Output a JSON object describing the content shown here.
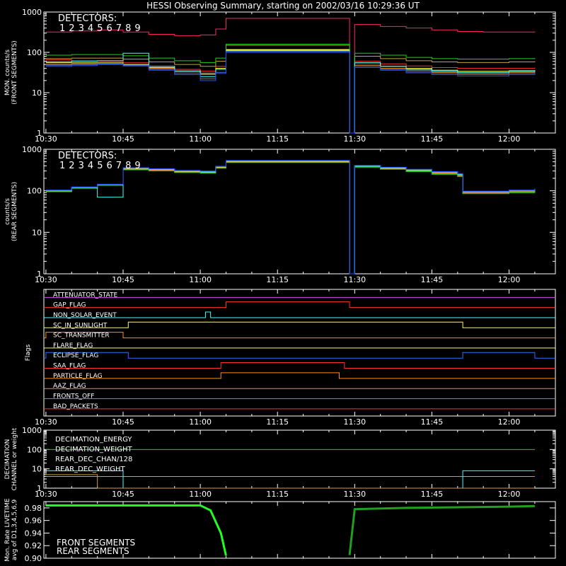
{
  "title": "HESSI Observing Summary, starting on 2002/03/16 10:29:36 UT",
  "time_ticks": [
    "10:30",
    "10:45",
    "11:00",
    "11:15",
    "11:30",
    "11:45",
    "12:00"
  ],
  "chart_data": [
    {
      "type": "line",
      "panel": "front",
      "ylabel": [
        "MON. counts/s",
        "(FRONT SEGMENTS)"
      ],
      "yscale": "log",
      "ylim": [
        1,
        1000
      ],
      "yticks": [
        "1",
        "10",
        "100",
        "1000"
      ],
      "legend_title": "DETECTORS:",
      "legend_digits": [
        "1",
        "2",
        "3",
        "4",
        "5",
        "6",
        "7",
        "8",
        "9"
      ],
      "colors": [
        "#ff2070",
        "#ff3030",
        "#ff8c1a",
        "#ffff40",
        "#c8a040",
        "#20d020",
        "#40ffff",
        "#3070ff",
        "#2050ff"
      ],
      "x": [
        "10:30",
        "10:35",
        "10:40",
        "10:45",
        "10:50",
        "10:55",
        "11:00",
        "11:03",
        "11:05",
        "11:29",
        "11:30",
        "11:35",
        "11:40",
        "11:45",
        "11:50",
        "11:55",
        "12:00",
        "12:05"
      ],
      "series": [
        {
          "values": [
            320,
            340,
            360,
            320,
            280,
            260,
            270,
            380,
            700,
            1,
            490,
            440,
            400,
            360,
            330,
            320,
            320,
            330
          ]
        },
        {
          "values": [
            65,
            62,
            60,
            55,
            45,
            38,
            34,
            45,
            120,
            1,
            60,
            52,
            46,
            42,
            40,
            40,
            40,
            42
          ]
        },
        {
          "values": [
            50,
            52,
            52,
            48,
            40,
            33,
            28,
            38,
            110,
            1,
            48,
            40,
            36,
            32,
            30,
            30,
            32,
            34
          ]
        },
        {
          "values": [
            55,
            55,
            55,
            50,
            42,
            35,
            30,
            40,
            115,
            1,
            55,
            45,
            40,
            36,
            34,
            34,
            35,
            36
          ]
        },
        {
          "values": [
            70,
            72,
            72,
            68,
            58,
            50,
            45,
            60,
            150,
            1,
            80,
            70,
            62,
            58,
            56,
            56,
            58,
            60
          ]
        },
        {
          "values": [
            85,
            88,
            88,
            82,
            72,
            62,
            56,
            72,
            160,
            1,
            95,
            85,
            75,
            70,
            68,
            68,
            70,
            72
          ]
        },
        {
          "values": [
            58,
            60,
            62,
            95,
            45,
            35,
            25,
            38,
            110,
            1,
            55,
            45,
            38,
            34,
            32,
            32,
            34,
            36
          ]
        },
        {
          "values": [
            48,
            50,
            52,
            48,
            38,
            30,
            22,
            32,
            105,
            1,
            45,
            38,
            33,
            30,
            28,
            28,
            30,
            32
          ]
        },
        {
          "values": [
            45,
            47,
            50,
            46,
            36,
            28,
            20,
            30,
            100,
            1,
            42,
            36,
            31,
            28,
            26,
            26,
            28,
            30
          ]
        }
      ]
    },
    {
      "type": "line",
      "panel": "rear",
      "ylabel": [
        "counts/s",
        "(REAR SEGMENTS)"
      ],
      "yscale": "log",
      "ylim": [
        1,
        1000
      ],
      "yticks": [
        "1",
        "10",
        "100",
        "1000"
      ],
      "legend_title": "DETECTORS:",
      "legend_digits": [
        "1",
        "2",
        "3",
        "4",
        "5",
        "6",
        "7",
        "8",
        "9"
      ],
      "colors": [
        "#ff2070",
        "#ff3030",
        "#ff8c1a",
        "#ffff40",
        "#c8a040",
        "#20d020",
        "#40ffff",
        "#3070ff",
        "#2050ff"
      ],
      "x": [
        "10:30",
        "10:35",
        "10:40",
        "10:45",
        "10:50",
        "10:55",
        "11:00",
        "11:03",
        "11:05",
        "11:29",
        "11:30",
        "11:35",
        "11:40",
        "11:45",
        "11:50",
        "11:51",
        "11:55",
        "12:00",
        "12:05"
      ],
      "series": [
        {
          "values": [
            100,
            120,
            140,
            350,
            330,
            300,
            290,
            380,
            520,
            1,
            400,
            360,
            320,
            280,
            250,
            95,
            95,
            100,
            110
          ]
        },
        {
          "values": [
            100,
            120,
            140,
            340,
            320,
            290,
            280,
            370,
            500,
            1,
            390,
            350,
            310,
            270,
            240,
            92,
            92,
            98,
            108
          ]
        },
        {
          "values": [
            100,
            120,
            140,
            345,
            325,
            295,
            285,
            375,
            510,
            1,
            395,
            355,
            315,
            275,
            245,
            93,
            93,
            99,
            109
          ]
        },
        {
          "values": [
            100,
            120,
            140,
            345,
            325,
            295,
            285,
            375,
            510,
            1,
            395,
            355,
            315,
            275,
            245,
            93,
            93,
            99,
            109
          ]
        },
        {
          "values": [
            98,
            118,
            138,
            330,
            310,
            285,
            275,
            360,
            490,
            1,
            380,
            340,
            300,
            260,
            230,
            88,
            88,
            94,
            104
          ]
        },
        {
          "values": [
            95,
            115,
            135,
            320,
            300,
            275,
            265,
            350,
            480,
            1,
            370,
            330,
            290,
            250,
            220,
            85,
            85,
            90,
            100
          ]
        },
        {
          "values": [
            100,
            120,
            70,
            350,
            330,
            300,
            290,
            380,
            520,
            1,
            400,
            360,
            320,
            280,
            250,
            95,
            95,
            100,
            110
          ]
        },
        {
          "values": [
            102,
            122,
            142,
            355,
            335,
            305,
            295,
            385,
            530,
            1,
            405,
            365,
            325,
            285,
            255,
            96,
            96,
            102,
            112
          ]
        },
        {
          "values": [
            104,
            124,
            144,
            360,
            340,
            310,
            300,
            390,
            540,
            1,
            410,
            370,
            330,
            290,
            260,
            98,
            98,
            104,
            114
          ]
        }
      ]
    },
    {
      "type": "line",
      "panel": "flags",
      "ylabel": [
        "Flags"
      ],
      "flags": [
        {
          "name": "ATTENUATOR_STATE",
          "color": "#e040ff",
          "on": []
        },
        {
          "name": "GAP_FLAG",
          "color": "#ff3030",
          "on": [
            [
              "11:05",
              "11:29"
            ]
          ]
        },
        {
          "name": "NON_SOLAR_EVENT",
          "color": "#40ffff",
          "on": [
            [
              "11:01",
              "11:02"
            ]
          ]
        },
        {
          "name": "SC_IN_SUNLIGHT",
          "color": "#ffff40",
          "on": [
            [
              "10:46",
              "11:51"
            ]
          ]
        },
        {
          "name": "SC_TRANSMITTER",
          "color": "#ff8c1a",
          "on": [
            [
              "10:30",
              "10:45"
            ]
          ]
        },
        {
          "name": "FLARE_FLAG",
          "color": "#ffff40",
          "on": []
        },
        {
          "name": "ECLIPSE_FLAG",
          "color": "#3070ff",
          "on": [
            [
              "10:30",
              "10:46"
            ],
            [
              "11:51",
              "12:05"
            ]
          ]
        },
        {
          "name": "SAA_FLAG",
          "color": "#ff3030",
          "on": [
            [
              "11:04",
              "11:28"
            ]
          ]
        },
        {
          "name": "PARTICLE_FLAG",
          "color": "#ff8c1a",
          "on": [
            [
              "11:04",
              "11:27"
            ]
          ]
        },
        {
          "name": "AAZ_FLAG",
          "color": "#c8a040",
          "on": []
        },
        {
          "name": "FRONTS_OFF",
          "color": "#20d020",
          "on": []
        },
        {
          "name": "BAD_PACKETS",
          "color": "#ff3030",
          "on": []
        }
      ]
    },
    {
      "type": "line",
      "panel": "decimation",
      "ylabel": [
        "DECIMATION",
        "CHANNEL or weight"
      ],
      "yscale": "log",
      "ylim": [
        1,
        1000
      ],
      "yticks": [
        "1",
        "10",
        "100",
        "1000"
      ],
      "series": [
        {
          "name": "DECIMATION_ENERGY",
          "color": "#20d020",
          "x": [
            "10:30",
            "12:05"
          ],
          "values": [
            100,
            100
          ]
        },
        {
          "name": "DECIMATION_WEIGHT",
          "color": "#ff8c1a",
          "x": [
            "10:30",
            "10:45",
            "10:45",
            "12:05"
          ],
          "values": [
            4,
            4,
            4,
            4
          ]
        },
        {
          "name": "REAR_DEC_CHAN/128",
          "color": "#40ffff",
          "x": [
            "10:30",
            "10:45",
            "10:45",
            "11:51",
            "11:51",
            "12:05"
          ],
          "values": [
            8,
            8,
            1,
            1,
            8,
            8
          ]
        },
        {
          "name": "REAR_DEC_WEIGHT",
          "color": "#c8a040",
          "x": [
            "10:30",
            "10:40",
            "10:40",
            "12:05"
          ],
          "values": [
            5,
            5,
            1,
            1
          ]
        }
      ]
    },
    {
      "type": "line",
      "panel": "livetime",
      "ylabel": [
        "Mon. Rate LIVETIME",
        "avg of D1,3,4,5,6,9"
      ],
      "ylim": [
        0.9,
        0.99
      ],
      "yticks": [
        "0.90",
        "0.92",
        "0.94",
        "0.96",
        "0.98"
      ],
      "series": [
        {
          "name": "FRONT SEGMENTS",
          "color": "#20ff20",
          "x": [
            "10:30",
            "10:40",
            "10:50",
            "11:00",
            "11:02",
            "11:04",
            "11:05"
          ],
          "values": [
            0.984,
            0.984,
            0.984,
            0.984,
            0.976,
            0.94,
            0.904
          ]
        },
        {
          "name": "REAR SEGMENTS",
          "color": "#20a020",
          "x": [
            "11:29",
            "11:30",
            "11:40",
            "11:50",
            "12:00",
            "12:05"
          ],
          "values": [
            0.905,
            0.978,
            0.98,
            0.981,
            0.982,
            0.983
          ]
        }
      ]
    }
  ]
}
